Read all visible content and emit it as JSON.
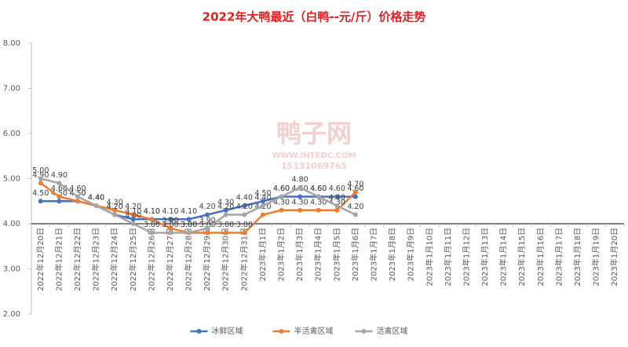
{
  "chart_data": {
    "type": "line",
    "title": "2022年大鸭最近（白鸭--元/斤）价格走势",
    "watermark": [
      "鸭子网",
      "WWW.INTEDC.COM",
      "15131069765"
    ],
    "categories": [
      "2022年12月20日",
      "2022年12月21日",
      "2022年12月22日",
      "2022年12月23日",
      "2022年12月24日",
      "2022年12月25日",
      "2022年12月26日",
      "2022年12月27日",
      "2022年12月28日",
      "2022年12月29日",
      "2022年12月30日",
      "2022年12月31日",
      "2023年1月1日",
      "2023年1月2日",
      "2023年1月3日",
      "2023年1月4日",
      "2023年1月5日",
      "2023年1月6日",
      "2023年1月7日",
      "2023年1月8日",
      "2023年1月9日",
      "2023年1月10日",
      "2023年1月11日",
      "2023年1月12日",
      "2023年1月13日",
      "2023年1月14日",
      "2023年1月15日",
      "2023年1月16日",
      "2023年1月17日",
      "2023年1月18日",
      "2023年1月19日",
      "2023年1月20日"
    ],
    "series": [
      {
        "name": "冰鲜区域",
        "color": "#4472c4",
        "values": [
          4.5,
          4.5,
          4.5,
          4.4,
          4.2,
          4.1,
          4.1,
          4.1,
          4.1,
          4.2,
          4.3,
          4.4,
          4.5,
          4.6,
          4.6,
          4.6,
          4.6,
          4.6,
          null,
          null,
          null,
          null,
          null,
          null,
          null,
          null,
          null,
          null,
          null,
          null,
          null,
          null
        ],
        "value_labels": [
          "4.50",
          "4.50",
          "4.50",
          "4.40",
          "4.20",
          "4.10",
          "4.10",
          "4.10",
          "4.10",
          "4.20",
          "4.30",
          "4.40",
          "4.50",
          "4.60",
          "4.60",
          "4.60",
          "4.60",
          "4.60",
          null,
          null,
          null,
          null,
          null,
          null,
          null,
          null,
          null,
          null,
          null,
          null,
          null,
          null
        ]
      },
      {
        "name": "半活禽区域",
        "color": "#ed7d31",
        "values": [
          4.9,
          4.6,
          4.5,
          4.4,
          4.3,
          4.2,
          4.1,
          3.9,
          3.8,
          3.8,
          3.8,
          3.8,
          4.2,
          4.3,
          4.3,
          4.3,
          4.3,
          4.7,
          null,
          null,
          null,
          null,
          null,
          null,
          null,
          null,
          null,
          null,
          null,
          null,
          null,
          null
        ],
        "value_labels": [
          "4.90",
          "4.60",
          "4.50",
          "4.40",
          "4.30",
          "4.20",
          "4.10",
          "3.90",
          "3.80",
          "3.80",
          "3.80",
          "3.80",
          "4.20",
          "4.30",
          "4.30",
          "4.30",
          "4.30",
          "4.70",
          null,
          null,
          null,
          null,
          null,
          null,
          null,
          null,
          null,
          null,
          null,
          null,
          null,
          null
        ]
      },
      {
        "name": "活禽区域",
        "color": "#a5a5a5",
        "values": [
          5.0,
          4.9,
          4.6,
          4.4,
          4.2,
          4.0,
          3.8,
          3.8,
          3.8,
          3.9,
          4.2,
          4.2,
          4.4,
          4.6,
          4.8,
          4.6,
          4.4,
          4.2,
          null,
          null,
          null,
          null,
          null,
          null,
          null,
          null,
          null,
          null,
          null,
          null,
          null,
          null
        ],
        "value_labels": [
          "5.00",
          "4.90",
          "4.60",
          "4.40",
          "4.20",
          "4.00",
          "3.80",
          "3.80",
          "3.80",
          "3.90",
          "4.20",
          "4.20",
          "4.40",
          "4.60",
          "4.80",
          "4.60",
          "4.40",
          "4.20",
          null,
          null,
          null,
          null,
          null,
          null,
          null,
          null,
          null,
          null,
          null,
          null,
          null,
          null
        ]
      }
    ],
    "ylim": [
      2,
      8
    ],
    "yticks": [
      {
        "value": 2,
        "label": "2.00"
      },
      {
        "value": 3,
        "label": "3.00"
      },
      {
        "value": 4,
        "label": "4.00"
      },
      {
        "value": 5,
        "label": "5.00"
      },
      {
        "value": 6,
        "label": "6.00"
      },
      {
        "value": 7,
        "label": "7.00"
      },
      {
        "value": 8,
        "label": "8.00"
      }
    ],
    "x_axis_at": 4,
    "legend": "bottom"
  }
}
